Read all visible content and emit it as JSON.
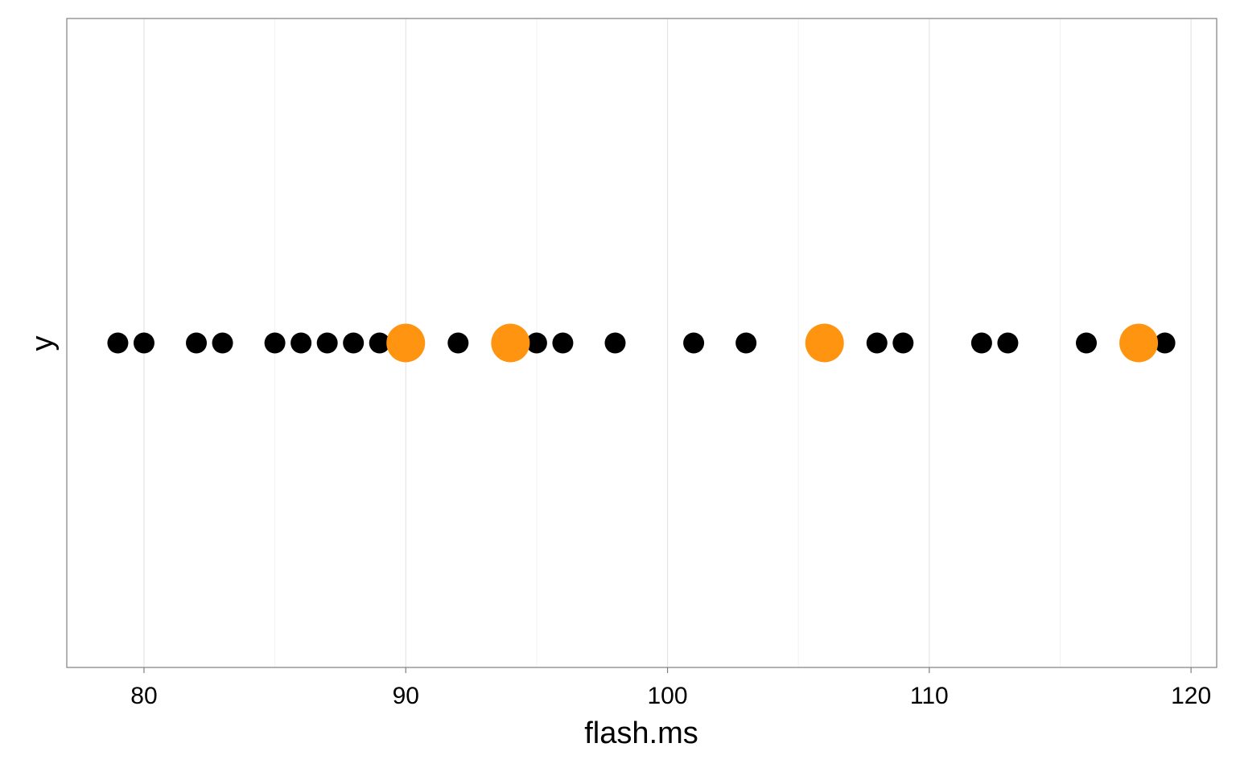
{
  "chart_data": {
    "type": "scatter",
    "x_label": "flash.ms",
    "y_label": "y",
    "xlim": [
      77.05,
      120.98
    ],
    "xticks": [
      80,
      90,
      100,
      110,
      120
    ],
    "xminorticks": [
      85,
      95,
      105,
      115
    ],
    "grid": true,
    "series": [
      {
        "color": "#000000",
        "size": 13,
        "values": [
          79,
          80,
          82,
          83,
          85,
          86,
          87,
          88,
          89,
          92,
          95,
          96,
          98,
          101,
          103,
          108,
          109,
          112,
          113,
          116,
          119
        ]
      },
      {
        "color": "#ff9410",
        "size": 24,
        "values": [
          90,
          94,
          106,
          118
        ]
      }
    ]
  }
}
